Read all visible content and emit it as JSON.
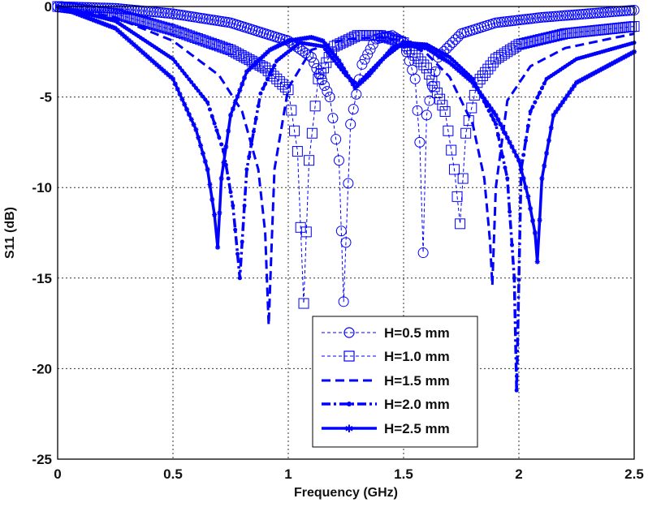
{
  "chart_data": {
    "type": "line",
    "title": "",
    "xlabel": "Frequency (GHz)",
    "ylabel": "S11 (dB)",
    "xlim": [
      0,
      2.5
    ],
    "ylim": [
      -25,
      0
    ],
    "xticks": [
      "0",
      "0.5",
      "1",
      "1.5",
      "2",
      "2.5"
    ],
    "yticks": [
      "0",
      "-5",
      "-10",
      "-15",
      "-20",
      "-25"
    ],
    "grid": true,
    "legend_position": "lower center (inside axes)",
    "line_color": "#0000ff",
    "series": [
      {
        "name": "H=0.5 mm",
        "style": "thin dashed, circle markers",
        "x": [
          0,
          0.25,
          0.5,
          0.75,
          1.0,
          1.1,
          1.18,
          1.22,
          1.24,
          1.27,
          1.32,
          1.38,
          1.45,
          1.5,
          1.55,
          1.57,
          1.585,
          1.6,
          1.65,
          1.75,
          1.9,
          2.1,
          2.3,
          2.5
        ],
        "y": [
          0,
          -0.1,
          -0.4,
          -0.9,
          -1.9,
          -2.8,
          -5.0,
          -8.5,
          -16.3,
          -6.5,
          -3.2,
          -1.8,
          -1.6,
          -2.0,
          -4.0,
          -7.5,
          -13.6,
          -6.0,
          -2.8,
          -1.5,
          -0.9,
          -0.6,
          -0.4,
          -0.2
        ]
      },
      {
        "name": "H=1.0 mm",
        "style": "thin dashed, square markers",
        "x": [
          0,
          0.25,
          0.5,
          0.75,
          0.9,
          1.0,
          1.04,
          1.067,
          1.09,
          1.13,
          1.2,
          1.3,
          1.4,
          1.5,
          1.6,
          1.68,
          1.72,
          1.745,
          1.77,
          1.82,
          1.9,
          2.0,
          2.2,
          2.5
        ],
        "y": [
          0,
          -0.4,
          -1.3,
          -2.4,
          -3.4,
          -4.6,
          -8.0,
          -16.4,
          -8.5,
          -4.0,
          -2.2,
          -1.6,
          -1.6,
          -2.0,
          -3.4,
          -5.8,
          -9.0,
          -12.0,
          -7.0,
          -4.2,
          -2.9,
          -2.1,
          -1.5,
          -1.1
        ]
      },
      {
        "name": "H=1.5 mm",
        "style": "thick dashed",
        "x": [
          0,
          0.25,
          0.5,
          0.7,
          0.8,
          0.87,
          0.9,
          0.915,
          0.94,
          1.0,
          1.1,
          1.25,
          1.4,
          1.5,
          1.6,
          1.7,
          1.8,
          1.85,
          1.875,
          1.885,
          1.9,
          1.95,
          2.05,
          2.2,
          2.5
        ],
        "y": [
          0,
          -0.6,
          -1.9,
          -3.8,
          -5.8,
          -9.0,
          -12.5,
          -17.6,
          -9.0,
          -4.5,
          -2.4,
          -1.8,
          -1.7,
          -1.9,
          -2.6,
          -3.9,
          -6.5,
          -9.5,
          -13.0,
          -15.4,
          -10.0,
          -5.2,
          -3.3,
          -2.3,
          -1.5
        ]
      },
      {
        "name": "H=2.0 mm",
        "style": "thick dash-dot, dot markers",
        "x": [
          0,
          0.25,
          0.5,
          0.65,
          0.72,
          0.76,
          0.79,
          0.82,
          0.88,
          0.95,
          1.05,
          1.15,
          1.25,
          1.3,
          1.4,
          1.5,
          1.6,
          1.7,
          1.8,
          1.9,
          1.95,
          1.98,
          1.99,
          2.01,
          2.05,
          2.12,
          2.25,
          2.5
        ],
        "y": [
          0,
          -0.8,
          -2.9,
          -5.3,
          -8.0,
          -11.0,
          -15.0,
          -9.0,
          -4.8,
          -3.0,
          -2.0,
          -2.2,
          -3.8,
          -4.3,
          -3.0,
          -2.0,
          -2.1,
          -2.8,
          -4.0,
          -6.5,
          -9.5,
          -15.0,
          -21.2,
          -9.0,
          -5.8,
          -4.0,
          -2.9,
          -2.0
        ]
      },
      {
        "name": "H=2.5 mm",
        "style": "thick solid, star markers",
        "x": [
          0,
          0.25,
          0.5,
          0.6,
          0.65,
          0.68,
          0.694,
          0.71,
          0.75,
          0.82,
          0.92,
          1.0,
          1.1,
          1.15,
          1.22,
          1.29,
          1.35,
          1.45,
          1.5,
          1.6,
          1.7,
          1.8,
          1.9,
          2.0,
          2.04,
          2.07,
          2.08,
          2.1,
          2.15,
          2.25,
          2.5
        ],
        "y": [
          0,
          -1.2,
          -4.0,
          -6.8,
          -9.0,
          -11.5,
          -13.3,
          -9.5,
          -6.0,
          -3.6,
          -2.4,
          -1.9,
          -1.7,
          -1.9,
          -3.0,
          -4.5,
          -3.8,
          -2.3,
          -2.1,
          -2.3,
          -3.1,
          -4.2,
          -6.0,
          -8.5,
          -10.5,
          -12.5,
          -14.1,
          -9.5,
          -6.0,
          -4.2,
          -2.5
        ]
      }
    ]
  },
  "legend": {
    "items": [
      "H=0.5 mm",
      "H=1.0 mm",
      "H=1.5 mm",
      "H=2.0 mm",
      "H=2.5 mm"
    ]
  }
}
